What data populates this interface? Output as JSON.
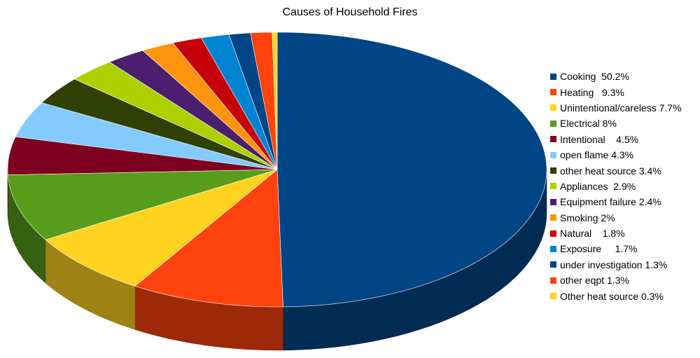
{
  "chart_data": {
    "type": "pie",
    "title": "Causes of Household Fires",
    "legend_position": "right",
    "slices": [
      {
        "label": "Cooking  50.2%",
        "value": 50.2,
        "color": "#004586"
      },
      {
        "label": "Heating   9.3%",
        "value": 9.3,
        "color": "#ff420e"
      },
      {
        "label": "Unintentional/careless 7.7%",
        "value": 7.7,
        "color": "#ffd320"
      },
      {
        "label": "Electrical 8%",
        "value": 8,
        "color": "#579d1c"
      },
      {
        "label": "Intentional    4.5%",
        "value": 4.5,
        "color": "#7e0021"
      },
      {
        "label": "open flame 4.3%",
        "value": 4.3,
        "color": "#83caff"
      },
      {
        "label": "other heat source 3.4%",
        "value": 3.4,
        "color": "#314004"
      },
      {
        "label": "Appliances  2.9%",
        "value": 2.9,
        "color": "#aecf00"
      },
      {
        "label": "Equipment failure 2.4%",
        "value": 2.4,
        "color": "#4b1f6f"
      },
      {
        "label": "Smoking 2%",
        "value": 2,
        "color": "#ff950e"
      },
      {
        "label": "Natural    1.8%",
        "value": 1.8,
        "color": "#c5000b"
      },
      {
        "label": "Exposure     1.7%",
        "value": 1.7,
        "color": "#0084d1"
      },
      {
        "label": "under investigation 1.3%",
        "value": 1.3,
        "color": "#004586"
      },
      {
        "label": "other eqpt 1.3%",
        "value": 1.3,
        "color": "#ff420e"
      },
      {
        "label": "Other heat source 0.3%",
        "value": 0.3,
        "color": "#ffd320"
      }
    ]
  }
}
